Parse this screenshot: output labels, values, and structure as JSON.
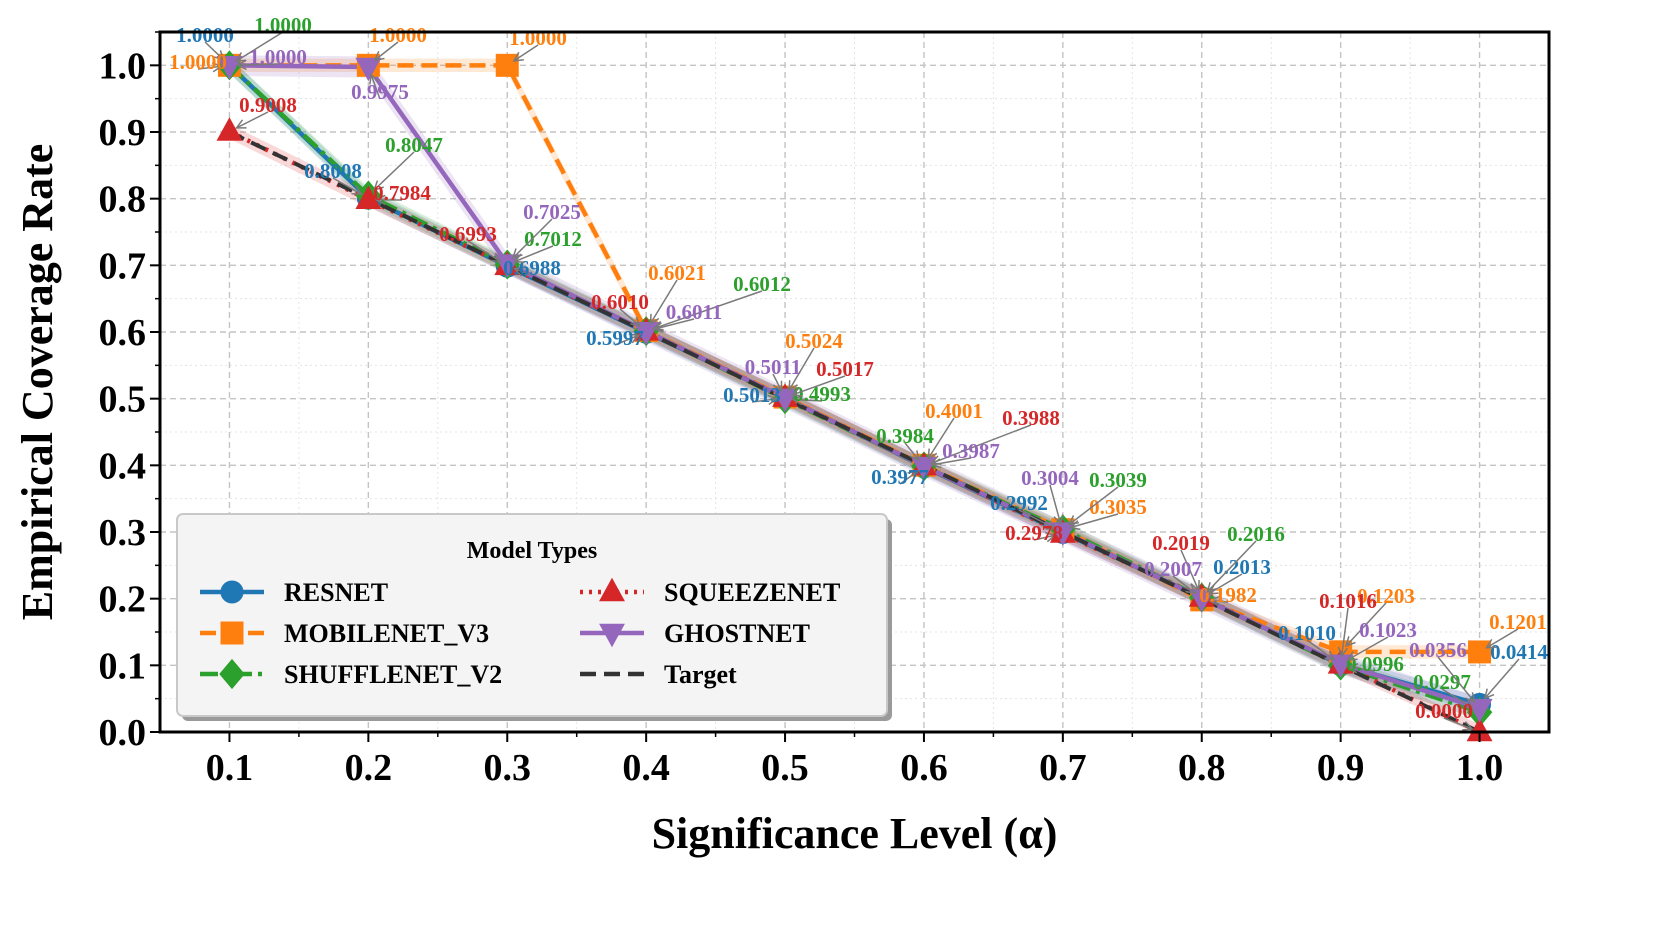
{
  "chart_data": {
    "type": "line",
    "xlabel": "Significance Level (α)",
    "ylabel": "Empirical Coverage Rate",
    "xlim": [
      0.05,
      1.05
    ],
    "ylim": [
      0.0,
      1.05
    ],
    "x_ticks": [
      "0.1",
      "0.2",
      "0.3",
      "0.4",
      "0.5",
      "0.6",
      "0.7",
      "0.8",
      "0.9",
      "1.0"
    ],
    "y_ticks": [
      "0.0",
      "0.1",
      "0.2",
      "0.3",
      "0.4",
      "0.5",
      "0.6",
      "0.7",
      "0.8",
      "0.9",
      "1.0"
    ],
    "grid": true,
    "legend": {
      "title": "Model Types",
      "placement": "lower-left"
    },
    "x": [
      0.1,
      0.2,
      0.3,
      0.4,
      0.5,
      0.6,
      0.7,
      0.8,
      0.9,
      1.0
    ],
    "series": [
      {
        "name": "RESNET",
        "color": "#1f77b4",
        "marker": "circle",
        "dash": "solid",
        "values": [
          1.0,
          0.8008,
          0.6988,
          0.5997,
          0.5013,
          0.3977,
          0.2992,
          0.2013,
          0.101,
          0.0414
        ],
        "labels": [
          "1.0000",
          "0.8008",
          "0.6988",
          "0.5997",
          "0.5013",
          "0.3977",
          "0.2992",
          "0.2013",
          "0.1010",
          "0.0414"
        ]
      },
      {
        "name": "MOBILENET_V3",
        "color": "#ff7f0e",
        "marker": "square",
        "dash": "dashed",
        "values": [
          1.0,
          1.0,
          1.0,
          0.6021,
          0.5024,
          0.4001,
          0.3035,
          0.1982,
          0.1203,
          0.1201
        ],
        "labels": [
          "1.0000",
          "1.0000",
          "1.0000",
          "0.6021",
          "0.5024",
          "0.4001",
          "0.3035",
          "0.1982",
          "0.1203",
          "0.1201"
        ]
      },
      {
        "name": "SHUFFLENET_V2",
        "color": "#2ca02c",
        "marker": "diamond",
        "dash": "dashdot",
        "values": [
          1.0,
          0.8047,
          0.7012,
          0.6012,
          0.4993,
          0.3984,
          0.3039,
          0.2016,
          0.0996,
          0.0297
        ],
        "labels": [
          "1.0000",
          "0.8047",
          "0.7012",
          "0.6012",
          "0.4993",
          "0.3984",
          "0.3039",
          "0.2016",
          "0.0996",
          "0.0297"
        ]
      },
      {
        "name": "SQUEEZENET",
        "color": "#d62728",
        "marker": "triangle-up",
        "dash": "dotted",
        "values": [
          0.9008,
          0.7984,
          0.6993,
          0.601,
          0.5017,
          0.3988,
          0.2978,
          0.2019,
          0.1016,
          0.0
        ],
        "labels": [
          "0.9008",
          "0.7984",
          "0.6993",
          "0.6010",
          "0.5017",
          "0.3988",
          "0.2978",
          "0.2019",
          "0.1016",
          "0.0000"
        ]
      },
      {
        "name": "GHOSTNET",
        "color": "#9467bd",
        "marker": "triangle-down",
        "dash": "solid",
        "values": [
          1.0,
          0.9975,
          0.7025,
          0.6011,
          0.5011,
          0.3987,
          0.3004,
          0.2007,
          0.1023,
          0.0356
        ],
        "labels": [
          "1.0000",
          "0.9975",
          "0.7025",
          "0.6011",
          "0.5011",
          "0.3987",
          "0.3004",
          "0.2007",
          "0.1023",
          "0.0356"
        ]
      },
      {
        "name": "Target",
        "color": "#333333",
        "marker": "none",
        "dash": "dashed",
        "values": [
          0.9,
          0.8,
          0.7,
          0.6,
          0.5,
          0.4,
          0.3,
          0.2,
          0.1,
          0.0
        ]
      }
    ]
  }
}
